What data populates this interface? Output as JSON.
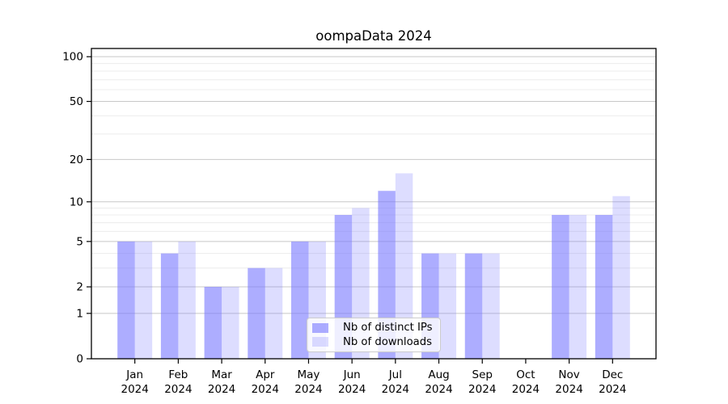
{
  "chart_data": {
    "type": "bar",
    "title": "oompaData 2024",
    "categories": [
      "Jan",
      "Feb",
      "Mar",
      "Apr",
      "May",
      "Jun",
      "Jul",
      "Aug",
      "Sep",
      "Oct",
      "Nov",
      "Dec"
    ],
    "year_label": "2024",
    "series": [
      {
        "name": "Nb of distinct IPs",
        "color": "rgba(119,119,255,0.6)",
        "values": [
          5,
          4,
          2,
          3,
          5,
          8,
          12,
          4,
          4,
          0,
          8,
          8
        ]
      },
      {
        "name": "Nb of downloads",
        "color": "rgba(119,119,255,0.25)",
        "values": [
          5,
          5,
          2,
          3,
          5,
          9,
          16,
          4,
          4,
          0,
          8,
          11
        ]
      }
    ],
    "y_axis": {
      "scale": "log1p",
      "ticks": [
        0,
        1,
        2,
        5,
        10,
        20,
        50,
        100
      ],
      "minor_gridlines": [
        3,
        4,
        6,
        7,
        8,
        9,
        30,
        40,
        60,
        70,
        80,
        90
      ],
      "range_top": 113
    },
    "legend": {
      "position": "bottom-center-inside"
    },
    "colors": {
      "major_grid": "#c8c8c8",
      "minor_grid": "#ececec",
      "axis": "#000000",
      "text": "#000000",
      "background": "#ffffff"
    }
  }
}
